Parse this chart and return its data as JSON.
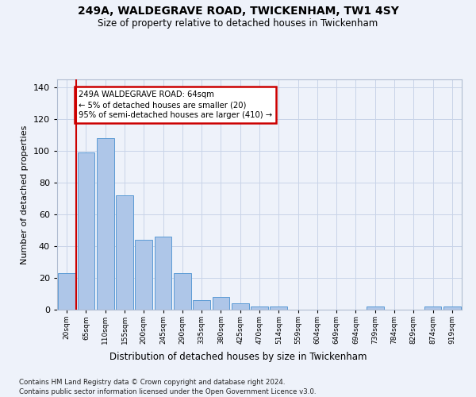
{
  "title_line1": "249A, WALDEGRAVE ROAD, TWICKENHAM, TW1 4SY",
  "title_line2": "Size of property relative to detached houses in Twickenham",
  "xlabel": "Distribution of detached houses by size in Twickenham",
  "ylabel": "Number of detached properties",
  "categories": [
    "20sqm",
    "65sqm",
    "110sqm",
    "155sqm",
    "200sqm",
    "245sqm",
    "290sqm",
    "335sqm",
    "380sqm",
    "425sqm",
    "470sqm",
    "514sqm",
    "559sqm",
    "604sqm",
    "649sqm",
    "694sqm",
    "739sqm",
    "784sqm",
    "829sqm",
    "874sqm",
    "919sqm"
  ],
  "values": [
    23,
    99,
    108,
    72,
    44,
    46,
    23,
    6,
    8,
    4,
    2,
    2,
    0,
    0,
    0,
    0,
    2,
    0,
    0,
    2,
    2
  ],
  "bar_color": "#aec6e8",
  "bar_edge_color": "#5b9bd5",
  "ylim": [
    0,
    145
  ],
  "yticks": [
    0,
    20,
    40,
    60,
    80,
    100,
    120,
    140
  ],
  "vline_x": 0.5,
  "vline_color": "#cc0000",
  "annotation_text": "249A WALDEGRAVE ROAD: 64sqm\n← 5% of detached houses are smaller (20)\n95% of semi-detached houses are larger (410) →",
  "annotation_box_color": "#ffffff",
  "annotation_box_edge_color": "#cc0000",
  "bg_color": "#eef2fa",
  "grid_color": "#c8d4e8",
  "footer_line1": "Contains HM Land Registry data © Crown copyright and database right 2024.",
  "footer_line2": "Contains public sector information licensed under the Open Government Licence v3.0."
}
